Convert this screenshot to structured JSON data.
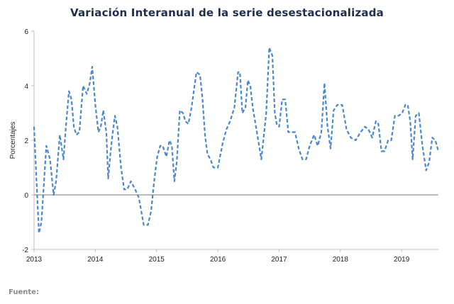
{
  "chart_title": "Variación Interanual de la serie desestacionalizada",
  "source_label": "Fuente:",
  "colors": {
    "line": "#4a86cf",
    "title": "#1f2d4e",
    "zero_line": "#777777",
    "axis": "#bfbfbf"
  },
  "chart_data": {
    "type": "line",
    "title": "Variación Interanual de la serie desestacionalizada",
    "xlabel": "",
    "ylabel": "Porcentajes",
    "xlim": [
      2013,
      2019.6
    ],
    "ylim": [
      -2,
      6
    ],
    "yticks": [
      -2,
      0,
      2,
      4,
      6
    ],
    "xticks": [
      2013,
      2014,
      2015,
      2016,
      2017,
      2018,
      2019
    ],
    "xtick_labels": [
      "2013",
      "2014",
      "2015",
      "2016",
      "2017",
      "2018",
      "2019"
    ],
    "grid": false,
    "legend": "none",
    "series": [
      {
        "line_style": "dashed",
        "x": [
          2013.0,
          2013.04,
          2013.08,
          2013.12,
          2013.2,
          2013.26,
          2013.32,
          2013.36,
          2013.42,
          2013.48,
          2013.52,
          2013.57,
          2013.61,
          2013.65,
          2013.69,
          2013.74,
          2013.8,
          2013.86,
          2013.91,
          2013.95,
          2014.0,
          2014.05,
          2014.09,
          2014.13,
          2014.18,
          2014.21,
          2014.25,
          2014.28,
          2014.32,
          2014.36,
          2014.42,
          2014.47,
          2014.52,
          2014.58,
          2014.65,
          2014.71,
          2014.79,
          2014.86,
          2014.91,
          2014.96,
          2015.01,
          2015.06,
          2015.1,
          2015.16,
          2015.21,
          2015.25,
          2015.29,
          2015.33,
          2015.38,
          2015.43,
          2015.47,
          2015.52,
          2015.57,
          2015.65,
          2015.71,
          2015.75,
          2015.79,
          2015.83,
          2015.88,
          2015.93,
          2016.0,
          2016.08,
          2016.14,
          2016.2,
          2016.27,
          2016.33,
          2016.36,
          2016.4,
          2016.45,
          2016.49,
          2016.53,
          2016.57,
          2016.63,
          2016.71,
          2016.79,
          2016.84,
          2016.89,
          2016.93,
          2016.96,
          2017.0,
          2017.05,
          2017.1,
          2017.15,
          2017.2,
          2017.26,
          2017.32,
          2017.38,
          2017.44,
          2017.5,
          2017.57,
          2017.63,
          2017.69,
          2017.74,
          2017.79,
          2017.84,
          2017.89,
          2017.95,
          2018.03,
          2018.1,
          2018.17,
          2018.25,
          2018.33,
          2018.4,
          2018.46,
          2018.52,
          2018.58,
          2018.62,
          2018.67,
          2018.72,
          2018.78,
          2018.83,
          2018.89,
          2018.95,
          2019.01,
          2019.06,
          2019.1,
          2019.14,
          2019.18,
          2019.23,
          2019.28,
          2019.34,
          2019.4,
          2019.45,
          2019.5,
          2019.55,
          2019.6
        ],
        "y": [
          2.5,
          0.5,
          -1.4,
          -1.0,
          1.8,
          1.3,
          0.0,
          0.5,
          2.2,
          1.3,
          2.5,
          3.8,
          3.5,
          2.5,
          2.2,
          2.3,
          4.0,
          3.7,
          4.1,
          4.7,
          3.3,
          2.3,
          2.5,
          3.1,
          2.3,
          0.6,
          1.6,
          2.2,
          2.9,
          2.5,
          1.0,
          0.2,
          0.2,
          0.5,
          0.2,
          -0.1,
          -1.1,
          -1.1,
          -0.6,
          0.5,
          1.4,
          1.8,
          1.8,
          1.4,
          2.0,
          1.8,
          0.5,
          1.2,
          3.1,
          3.0,
          2.7,
          2.6,
          3.2,
          4.5,
          4.4,
          3.5,
          2.2,
          1.5,
          1.3,
          1.0,
          1.0,
          1.9,
          2.4,
          2.7,
          3.2,
          4.5,
          4.5,
          3.0,
          3.2,
          4.2,
          4.0,
          3.2,
          2.4,
          1.3,
          3.0,
          5.4,
          5.1,
          3.0,
          2.6,
          2.5,
          3.5,
          3.5,
          2.3,
          2.3,
          2.3,
          1.7,
          1.3,
          1.3,
          1.8,
          2.2,
          1.8,
          2.3,
          4.1,
          2.5,
          1.7,
          3.1,
          3.3,
          3.3,
          2.4,
          2.1,
          2.0,
          2.3,
          2.5,
          2.4,
          2.1,
          2.7,
          2.6,
          1.6,
          1.6,
          2.0,
          2.0,
          2.9,
          2.9,
          3.0,
          3.3,
          3.3,
          2.7,
          1.3,
          2.9,
          3.0,
          1.8,
          0.9,
          1.2,
          2.1,
          2.0,
          1.6
        ]
      }
    ]
  }
}
